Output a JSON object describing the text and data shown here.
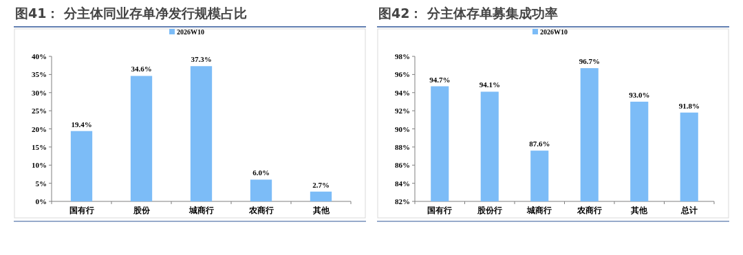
{
  "chart_data": [
    {
      "type": "bar",
      "title": "图41：    分主体同业存单净发行规模占比",
      "categories": [
        "国有行",
        "股份",
        "城商行",
        "农商行",
        "其他"
      ],
      "series": [
        {
          "name": "2026W10",
          "color": "#7cbcf7",
          "values": [
            19.4,
            34.6,
            37.3,
            6.0,
            2.7
          ],
          "value_labels": [
            "19.4%",
            "34.6%",
            "37.3%",
            "6.0%",
            "2.7%"
          ]
        }
      ],
      "ylim": [
        0,
        40
      ],
      "yticks": [
        {
          "value": 0,
          "label": "0%"
        },
        {
          "value": 5,
          "label": "5%"
        },
        {
          "value": 10,
          "label": "10%"
        },
        {
          "value": 15,
          "label": "15%"
        },
        {
          "value": 20,
          "label": "20%"
        },
        {
          "value": 25,
          "label": "25%"
        },
        {
          "value": 30,
          "label": "30%"
        },
        {
          "value": 35,
          "label": "35%"
        },
        {
          "value": 40,
          "label": "40%"
        }
      ],
      "legend": "top",
      "grid": false
    },
    {
      "type": "bar",
      "title": "图42：    分主体存单募集成功率",
      "categories": [
        "国有行",
        "股份行",
        "城商行",
        "农商行",
        "其他",
        "总计"
      ],
      "series": [
        {
          "name": "2026W10",
          "color": "#7cbcf7",
          "values": [
            94.7,
            94.1,
            87.6,
            96.7,
            93.0,
            91.8
          ],
          "value_labels": [
            "94.7%",
            "94.1%",
            "87.6%",
            "96.7%",
            "93.0%",
            "91.8%"
          ]
        }
      ],
      "ylim": [
        82,
        98
      ],
      "yticks": [
        {
          "value": 82,
          "label": "82%"
        },
        {
          "value": 84,
          "label": "84%"
        },
        {
          "value": 86,
          "label": "86%"
        },
        {
          "value": 88,
          "label": "88%"
        },
        {
          "value": 90,
          "label": "90%"
        },
        {
          "value": 92,
          "label": "92%"
        },
        {
          "value": 94,
          "label": "94%"
        },
        {
          "value": 96,
          "label": "96%"
        },
        {
          "value": 98,
          "label": "98%"
        }
      ],
      "legend": "top",
      "grid": false
    }
  ]
}
